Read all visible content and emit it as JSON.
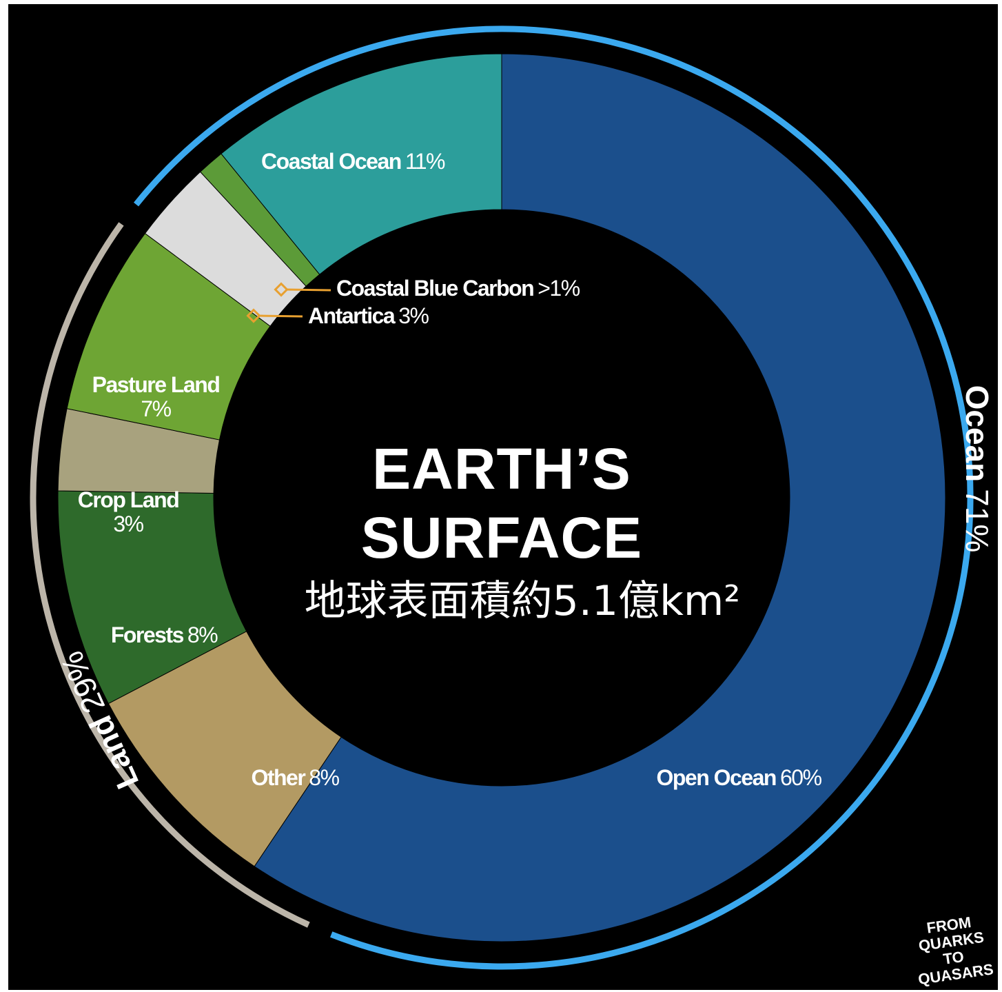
{
  "chart_data": {
    "type": "donut",
    "title": "EARTH’S SURFACE",
    "subtitle": "地球表面積約5.1億km²",
    "categories": [
      "Open Ocean",
      "Other",
      "Forests",
      "Crop Land",
      "Pasture Land",
      "Antartica",
      "Coastal Blue Carbon",
      "Coastal Ocean"
    ],
    "values": [
      60,
      8,
      8,
      3,
      7,
      3,
      1,
      11
    ],
    "value_labels": [
      "60%",
      "8%",
      "8%",
      "3%",
      "7%",
      "3%",
      ">1%",
      "11%"
    ],
    "colors": [
      "#1b4f8c",
      "#b39a63",
      "#2e6a2b",
      "#a8a27e",
      "#6ea534",
      "#dcdcdc",
      "#5c9b38",
      "#2c9e9b"
    ],
    "groups": {
      "categories": [
        "Ocean",
        "Land"
      ],
      "values": [
        71,
        29
      ],
      "value_labels": [
        "71%",
        "29%"
      ],
      "colors": [
        "#3ba9ef",
        "#bcb5a9"
      ]
    },
    "logo": "FROM QUARKS TO QUASARS"
  }
}
